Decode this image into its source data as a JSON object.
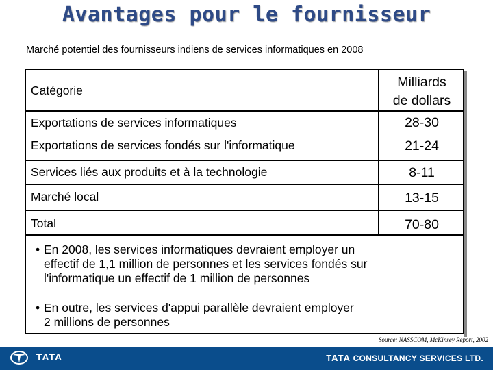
{
  "slide": {
    "title": "Avantages pour le fournisseur",
    "subtitle": "Marché potentiel des fournisseurs indiens de services informatiques en 2008"
  },
  "table": {
    "header_category": "Catégorie",
    "header_value_line1": "Milliards",
    "header_value_line2": "de dollars",
    "rows": [
      {
        "category": "Exportations de services informatiques",
        "value": "28-30"
      },
      {
        "category": "Exportations de services fondés sur l'informatique",
        "value": "21-24"
      },
      {
        "category": "Services liés aux produits et à la technologie",
        "value": "8-11"
      },
      {
        "category": "Marché local",
        "value": "13-15"
      },
      {
        "category": "Total",
        "value": "70-80"
      }
    ]
  },
  "bullets": [
    {
      "marker": "•",
      "lines": [
        "En 2008, les services informatiques devraient employer un",
        "effectif de 1,1 million de personnes et les services fondés sur",
        "l'informatique un effectif de 1 million de personnes"
      ]
    },
    {
      "marker": "•",
      "lines": [
        "En outre, les services d'appui parallèle devraient employer",
        "2 millions de personnes"
      ]
    }
  ],
  "source": "Source: NASSCOM, McKinsey Report, 2002",
  "footer": {
    "left_brand": "TATA",
    "right_brand_tata": "TATA",
    "right_brand_rest": "CONSULTANCY SERVICES LTD.",
    "background_color": "#0a4d8c"
  }
}
